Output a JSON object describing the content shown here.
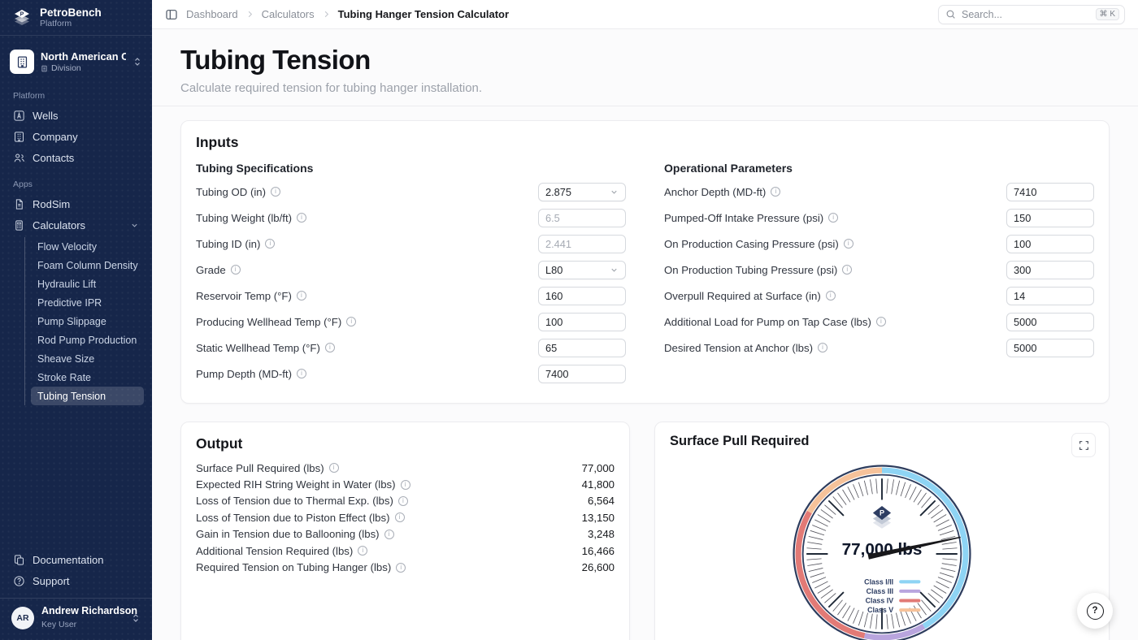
{
  "topbar": {
    "breadcrumbs": {
      "level1": "Dashboard",
      "level2": "Calculators",
      "current": "Tubing Hanger Tension Calculator"
    },
    "search": {
      "placeholder": "Search...",
      "shortcut": "⌘ K"
    }
  },
  "sidebar": {
    "brand": {
      "name": "PetroBench",
      "subtitle": "Platform"
    },
    "org": {
      "name": "North American Operations",
      "type": "Division"
    },
    "platform": {
      "label": "Platform",
      "items": [
        {
          "label": "Wells"
        },
        {
          "label": "Company"
        },
        {
          "label": "Contacts"
        }
      ]
    },
    "apps": {
      "label": "Apps",
      "rodsim": "RodSim",
      "calculators": "Calculators",
      "calc_items": [
        "Flow Velocity",
        "Foam Column Density",
        "Hydraulic Lift",
        "Predictive IPR",
        "Pump Slippage",
        "Rod Pump Production",
        "Sheave Size",
        "Stroke Rate",
        "Tubing Tension"
      ],
      "active_item": "Tubing Tension"
    },
    "footer": {
      "documentation": "Documentation",
      "support": "Support"
    },
    "user": {
      "initials": "AR",
      "name": "Andrew Richardson",
      "role": "Key User"
    }
  },
  "header": {
    "title": "Tubing Tension",
    "subtitle": "Calculate required tension for tubing hanger installation."
  },
  "inputs": {
    "title": "Inputs",
    "tubing": {
      "title": "Tubing Specifications",
      "fields": [
        {
          "label": "Tubing OD (in)",
          "value": "2.875",
          "control": "select"
        },
        {
          "label": "Tubing Weight (lb/ft)",
          "value": "6.5",
          "control": "input-muted"
        },
        {
          "label": "Tubing ID (in)",
          "value": "2.441",
          "control": "input-muted"
        },
        {
          "label": "Grade",
          "value": "L80",
          "control": "select"
        },
        {
          "label": "Reservoir Temp (°F)",
          "value": "160",
          "control": "input"
        },
        {
          "label": "Producing Wellhead Temp (°F)",
          "value": "100",
          "control": "input"
        },
        {
          "label": "Static Wellhead Temp (°F)",
          "value": "65",
          "control": "input"
        },
        {
          "label": "Pump Depth (MD-ft)",
          "value": "7400",
          "control": "input"
        }
      ]
    },
    "operational": {
      "title": "Operational Parameters",
      "fields": [
        {
          "label": "Anchor Depth (MD-ft)",
          "value": "7410"
        },
        {
          "label": "Pumped-Off Intake Pressure (psi)",
          "value": "150"
        },
        {
          "label": "On Production Casing Pressure (psi)",
          "value": "100"
        },
        {
          "label": "On Production Tubing Pressure (psi)",
          "value": "300"
        },
        {
          "label": "Overpull Required at Surface (in)",
          "value": "14"
        },
        {
          "label": "Additional Load for Pump on Tap Case (lbs)",
          "value": "5000"
        },
        {
          "label": "Desired Tension at Anchor (lbs)",
          "value": "5000"
        }
      ]
    }
  },
  "output": {
    "title": "Output",
    "rows": [
      {
        "label": "Surface Pull Required (lbs)",
        "value": "77,000"
      },
      {
        "label": "Expected RIH String Weight in Water (lbs)",
        "value": "41,800"
      },
      {
        "label": "Loss of Tension due to Thermal Exp. (lbs)",
        "value": "6,564"
      },
      {
        "label": "Loss of Tension due to Piston Effect (lbs)",
        "value": "13,150"
      },
      {
        "label": "Gain in Tension due to Ballooning (lbs)",
        "value": "3,248"
      },
      {
        "label": "Additional Tension Required (lbs)",
        "value": "16,466"
      },
      {
        "label": "Required Tension on Tubing Hanger (lbs)",
        "value": "26,600"
      }
    ]
  },
  "gauge": {
    "title": "Surface Pull Required",
    "value": 77000,
    "value_label": "77,000 lbs",
    "needle_deg": 78,
    "ring_color": "#2e3d5e",
    "segments": [
      {
        "label": "Class I/II",
        "color": "#8ed4f4",
        "start": 0,
        "end": 150
      },
      {
        "label": "Class III",
        "color": "#b9a5de",
        "start": 150,
        "end": 192
      },
      {
        "label": "Class IV",
        "color": "#e27a76",
        "start": 192,
        "end": 300
      },
      {
        "label": "Class V",
        "color": "#f6c29a",
        "start": 300,
        "end": 360
      }
    ]
  }
}
